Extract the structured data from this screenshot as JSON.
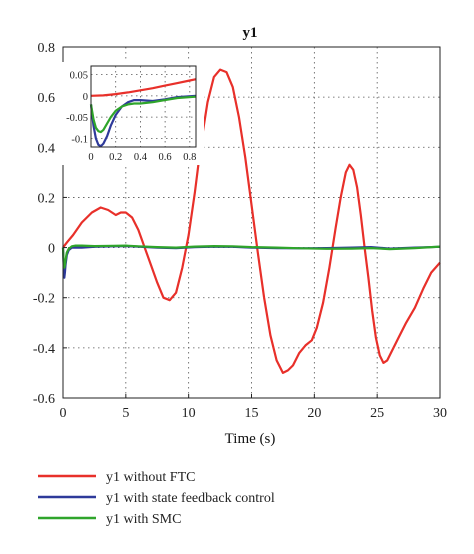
{
  "chart_data": {
    "type": "line",
    "title": "y1",
    "xlabel": "Time (s)",
    "ylabel": "",
    "xlim": [
      0,
      30
    ],
    "ylim": [
      -0.6,
      0.8
    ],
    "xticks": [
      0,
      5,
      10,
      15,
      20,
      25,
      30
    ],
    "yticks": [
      -0.6,
      -0.4,
      -0.2,
      0,
      0.2,
      0.4,
      0.6,
      0.8
    ],
    "grid": true,
    "legend_position": "bottom",
    "series": [
      {
        "name": "y1 without FTC",
        "color": "#e8302a",
        "x": [
          0,
          0.3,
          0.8,
          1.5,
          2.3,
          3.0,
          3.6,
          4.2,
          4.6,
          5.0,
          5.5,
          6.0,
          6.5,
          7.0,
          7.5,
          8.0,
          8.5,
          9.0,
          9.5,
          10.0,
          10.5,
          11.0,
          11.5,
          12.0,
          12.5,
          13.0,
          13.5,
          14.0,
          14.5,
          15.0,
          15.5,
          16.0,
          16.5,
          17.0,
          17.5,
          17.9,
          18.3,
          18.8,
          19.3,
          19.8,
          20.2,
          20.7,
          21.2,
          21.7,
          22.1,
          22.5,
          22.8,
          23.1,
          23.4,
          23.7,
          24.0,
          24.3,
          24.6,
          24.9,
          25.2,
          25.5,
          25.8,
          26.2,
          26.7,
          27.3,
          28.0,
          28.7,
          29.3,
          30.0
        ],
        "values": [
          0.0,
          0.02,
          0.05,
          0.1,
          0.14,
          0.16,
          0.15,
          0.13,
          0.14,
          0.14,
          0.12,
          0.07,
          0.0,
          -0.07,
          -0.14,
          -0.2,
          -0.21,
          -0.18,
          -0.08,
          0.05,
          0.22,
          0.42,
          0.58,
          0.68,
          0.71,
          0.7,
          0.64,
          0.52,
          0.36,
          0.17,
          -0.02,
          -0.2,
          -0.35,
          -0.45,
          -0.5,
          -0.49,
          -0.47,
          -0.42,
          -0.39,
          -0.37,
          -0.32,
          -0.22,
          -0.08,
          0.08,
          0.2,
          0.3,
          0.33,
          0.31,
          0.24,
          0.13,
          0.0,
          -0.12,
          -0.25,
          -0.36,
          -0.43,
          -0.46,
          -0.45,
          -0.41,
          -0.36,
          -0.3,
          -0.24,
          -0.16,
          -0.1,
          -0.06
        ]
      },
      {
        "name": "y1 with state feedback control",
        "color": "#2e3a9a",
        "x": [
          0,
          0.05,
          0.1,
          0.15,
          0.2,
          0.3,
          0.45,
          0.7,
          1.0,
          1.5,
          2.5,
          4.0,
          5.0,
          6.0,
          7.5,
          9.0,
          10.5,
          12.0,
          13.5,
          15.0,
          17.0,
          19.0,
          21.0,
          23.0,
          24.5,
          26.0,
          28.0,
          30.0
        ],
        "values": [
          0.0,
          -0.07,
          -0.12,
          -0.1,
          -0.07,
          -0.03,
          -0.01,
          0.0,
          0.0,
          0.0,
          0.003,
          0.005,
          0.006,
          0.004,
          0.0,
          -0.002,
          0.002,
          0.004,
          0.003,
          0.0,
          -0.002,
          -0.003,
          -0.002,
          0.0,
          0.002,
          -0.004,
          0.0,
          0.003
        ]
      },
      {
        "name": "y1 with SMC",
        "color": "#2fa52b",
        "x": [
          0,
          0.05,
          0.1,
          0.15,
          0.2,
          0.3,
          0.45,
          0.7,
          1.0,
          1.5,
          2.5,
          4.0,
          5.0,
          6.0,
          7.5,
          9.0,
          10.5,
          12.0,
          13.5,
          15.0,
          17.0,
          19.0,
          21.0,
          23.0,
          24.5,
          26.0,
          28.0,
          30.0
        ],
        "values": [
          0.0,
          -0.06,
          -0.08,
          -0.07,
          -0.05,
          -0.02,
          -0.005,
          0.005,
          0.008,
          0.008,
          0.006,
          0.007,
          0.008,
          0.005,
          0.002,
          0.0,
          0.004,
          0.006,
          0.005,
          0.002,
          0.0,
          -0.003,
          -0.005,
          -0.004,
          -0.002,
          -0.006,
          -0.002,
          0.004
        ]
      }
    ],
    "inset": {
      "xlim": [
        0,
        0.85
      ],
      "ylim": [
        -0.12,
        0.07
      ],
      "xticks": [
        0,
        0.2,
        0.4,
        0.6,
        0.8
      ],
      "yticks": [
        -0.1,
        -0.05,
        0,
        0.05
      ],
      "series": [
        {
          "name": "y1 without FTC",
          "color": "#e8302a",
          "x": [
            0,
            0.1,
            0.2,
            0.3,
            0.4,
            0.5,
            0.6,
            0.7,
            0.8,
            0.85
          ],
          "values": [
            0.0,
            0.001,
            0.004,
            0.008,
            0.013,
            0.018,
            0.024,
            0.03,
            0.036,
            0.039
          ]
        },
        {
          "name": "y1 with state feedback control",
          "color": "#2e3a9a",
          "x": [
            0,
            0.02,
            0.04,
            0.06,
            0.08,
            0.1,
            0.13,
            0.16,
            0.2,
            0.25,
            0.3,
            0.35,
            0.4,
            0.5,
            0.6,
            0.7,
            0.85
          ],
          "values": [
            -0.02,
            -0.07,
            -0.1,
            -0.115,
            -0.118,
            -0.112,
            -0.095,
            -0.07,
            -0.045,
            -0.025,
            -0.015,
            -0.01,
            -0.01,
            -0.012,
            -0.008,
            -0.003,
            0.0
          ]
        },
        {
          "name": "y1 with SMC",
          "color": "#2fa52b",
          "x": [
            0,
            0.02,
            0.04,
            0.06,
            0.08,
            0.1,
            0.13,
            0.16,
            0.2,
            0.25,
            0.3,
            0.35,
            0.4,
            0.5,
            0.6,
            0.7,
            0.85
          ],
          "values": [
            -0.02,
            -0.055,
            -0.075,
            -0.083,
            -0.085,
            -0.08,
            -0.065,
            -0.05,
            -0.035,
            -0.025,
            -0.02,
            -0.018,
            -0.018,
            -0.015,
            -0.01,
            -0.005,
            -0.002
          ]
        }
      ]
    }
  }
}
